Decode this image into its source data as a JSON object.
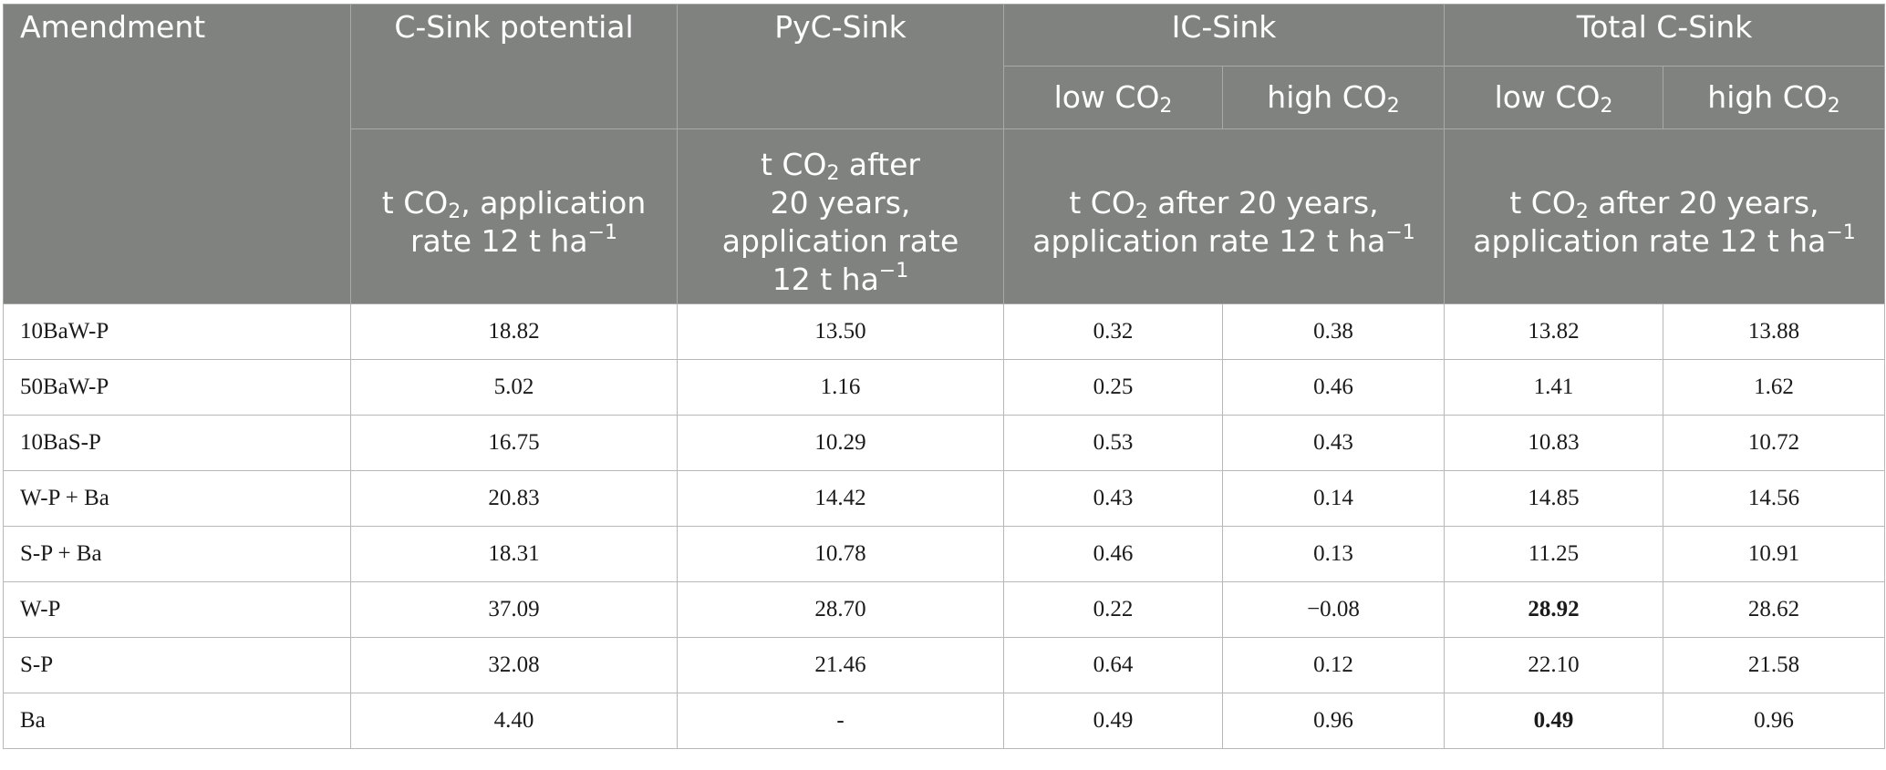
{
  "header": {
    "amendment": "Amendment",
    "c_sink_potential": "C-Sink potential",
    "pyc_sink": "PyC-Sink",
    "ic_sink": "IC-Sink",
    "total_c_sink": "Total C-Sink",
    "low_co2": "low CO",
    "high_co2": "high CO",
    "sub_2": "2",
    "unit_c_sink_line1": "t CO",
    "unit_c_sink_line1_after": ", application",
    "unit_c_sink_line2": "rate 12 t ha",
    "unit_pyc_line1": "t CO",
    "unit_pyc_line1_after": " after",
    "unit_pyc_line2": "20 years,",
    "unit_pyc_line3": "application rate",
    "unit_pyc_line4": "12 t ha",
    "unit_ic_line1": "t CO",
    "unit_ic_line1_after": " after 20 years,",
    "unit_ic_line2": "application rate 12 t ha",
    "unit_total_line1": "t CO",
    "unit_total_line1_after": " after 20 years,",
    "unit_total_line2": "application rate 12 t ha",
    "sup_minus1": "−1"
  },
  "rows": [
    {
      "name": "10BaW-P",
      "c_sink": "18.82",
      "pyc": "13.50",
      "ic_low": "0.32",
      "ic_high": "0.38",
      "total_low": "13.82",
      "total_high": "13.88"
    },
    {
      "name": "50BaW-P",
      "c_sink": "5.02",
      "pyc": "1.16",
      "ic_low": "0.25",
      "ic_high": "0.46",
      "total_low": "1.41",
      "total_high": "1.62"
    },
    {
      "name": "10BaS-P",
      "c_sink": "16.75",
      "pyc": "10.29",
      "ic_low": "0.53",
      "ic_high": "0.43",
      "total_low": "10.83",
      "total_high": "10.72"
    },
    {
      "name": "W-P + Ba",
      "c_sink": "20.83",
      "pyc": "14.42",
      "ic_low": "0.43",
      "ic_high": "0.14",
      "total_low": "14.85",
      "total_high": "14.56"
    },
    {
      "name": "S-P + Ba",
      "c_sink": "18.31",
      "pyc": "10.78",
      "ic_low": "0.46",
      "ic_high": "0.13",
      "total_low": "11.25",
      "total_high": "10.91"
    },
    {
      "name": "W-P",
      "c_sink": "37.09",
      "pyc": "28.70",
      "ic_low": "0.22",
      "ic_high": "−0.08",
      "total_low": "28.92",
      "total_high": "28.62",
      "bold_total_low": true
    },
    {
      "name": "S-P",
      "c_sink": "32.08",
      "pyc": "21.46",
      "ic_low": "0.64",
      "ic_high": "0.12",
      "total_low": "22.10",
      "total_high": "21.58"
    },
    {
      "name": "Ba",
      "c_sink": "4.40",
      "pyc": "-",
      "ic_low": "0.49",
      "ic_high": "0.96",
      "total_low": "0.49",
      "total_high": "0.96",
      "bold_total_low": true
    }
  ]
}
